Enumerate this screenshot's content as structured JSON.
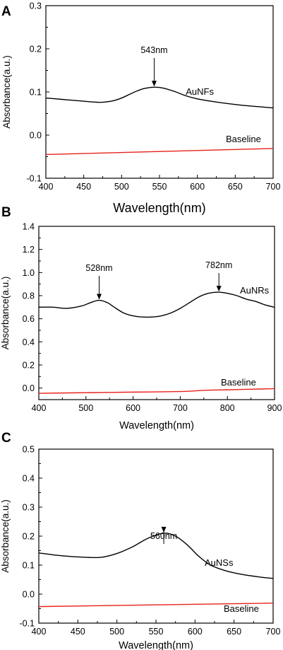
{
  "chart_data": [
    {
      "type": "line",
      "panel_label": "A",
      "xlabel": "Wavelength(nm)",
      "ylabel": "Absorbance(a.u.)",
      "xlim": [
        400,
        700
      ],
      "ylim": [
        -0.1,
        0.3
      ],
      "xticks": [
        "400",
        "450",
        "500",
        "550",
        "600",
        "650",
        "700"
      ],
      "yticks": [
        "-0.1",
        "0.0",
        "0.1",
        "0.2",
        "0.3"
      ],
      "grid": false,
      "series": [
        {
          "name": "AuNFs",
          "color": "#000000",
          "x": [
            400,
            420,
            440,
            460,
            470,
            480,
            490,
            500,
            510,
            520,
            530,
            543,
            555,
            570,
            585,
            600,
            620,
            640,
            660,
            680,
            700
          ],
          "y": [
            0.086,
            0.083,
            0.08,
            0.077,
            0.076,
            0.077,
            0.08,
            0.086,
            0.094,
            0.102,
            0.108,
            0.111,
            0.109,
            0.101,
            0.091,
            0.084,
            0.078,
            0.073,
            0.069,
            0.066,
            0.063
          ]
        },
        {
          "name": "Baseline",
          "color": "#e8211c",
          "x": [
            400,
            700
          ],
          "y": [
            -0.045,
            -0.031
          ]
        }
      ],
      "annotations": [
        {
          "text": "543nm",
          "x": 543,
          "y": 0.111
        }
      ]
    },
    {
      "type": "line",
      "panel_label": "B",
      "xlabel": "Wavelength(nm)",
      "ylabel": "Absorbance(a.u.)",
      "xlim": [
        400,
        900
      ],
      "ylim": [
        -0.1,
        1.4
      ],
      "xticks": [
        "400",
        "500",
        "600",
        "700",
        "800",
        "900"
      ],
      "yticks": [
        "0.0",
        "0.2",
        "0.4",
        "0.6",
        "0.8",
        "1.0",
        "1.2",
        "1.4"
      ],
      "grid": false,
      "series": [
        {
          "name": "AuNRs",
          "color": "#000000",
          "x": [
            400,
            430,
            460,
            490,
            510,
            528,
            545,
            560,
            580,
            600,
            620,
            640,
            660,
            680,
            700,
            720,
            740,
            760,
            782,
            800,
            820,
            840,
            860,
            880,
            900
          ],
          "y": [
            0.7,
            0.7,
            0.69,
            0.71,
            0.74,
            0.76,
            0.74,
            0.7,
            0.65,
            0.625,
            0.615,
            0.615,
            0.625,
            0.65,
            0.69,
            0.74,
            0.79,
            0.82,
            0.83,
            0.82,
            0.8,
            0.77,
            0.75,
            0.72,
            0.7
          ]
        },
        {
          "name": "Baseline",
          "color": "#e8211c",
          "x": [
            400,
            500,
            600,
            700,
            750,
            800,
            850,
            900
          ],
          "y": [
            -0.045,
            -0.04,
            -0.035,
            -0.03,
            -0.02,
            -0.015,
            -0.01,
            -0.005
          ]
        }
      ],
      "annotations": [
        {
          "text": "528nm",
          "x": 528,
          "y": 0.76
        },
        {
          "text": "782nm",
          "x": 782,
          "y": 0.83
        }
      ]
    },
    {
      "type": "line",
      "panel_label": "C",
      "xlabel": "Wavelength(nm)",
      "ylabel": "Absorbance(a.u.)",
      "xlim": [
        400,
        700
      ],
      "ylim": [
        -0.1,
        0.5
      ],
      "xticks": [
        "400",
        "450",
        "500",
        "550",
        "600",
        "650",
        "700"
      ],
      "yticks": [
        "-0.1",
        "0.0",
        "0.1",
        "0.2",
        "0.3",
        "0.4",
        "0.5"
      ],
      "grid": false,
      "series": [
        {
          "name": "AuNSs",
          "color": "#000000",
          "x": [
            400,
            420,
            440,
            460,
            480,
            500,
            520,
            540,
            560,
            575,
            590,
            605,
            620,
            640,
            660,
            680,
            700
          ],
          "y": [
            0.142,
            0.135,
            0.13,
            0.127,
            0.127,
            0.14,
            0.163,
            0.193,
            0.21,
            0.2,
            0.17,
            0.13,
            0.1,
            0.08,
            0.068,
            0.06,
            0.054
          ]
        },
        {
          "name": "Baseline",
          "color": "#e8211c",
          "x": [
            400,
            700
          ],
          "y": [
            -0.043,
            -0.031
          ]
        }
      ],
      "annotations": [
        {
          "text": "560nm",
          "x": 560,
          "y": 0.21
        }
      ]
    }
  ]
}
